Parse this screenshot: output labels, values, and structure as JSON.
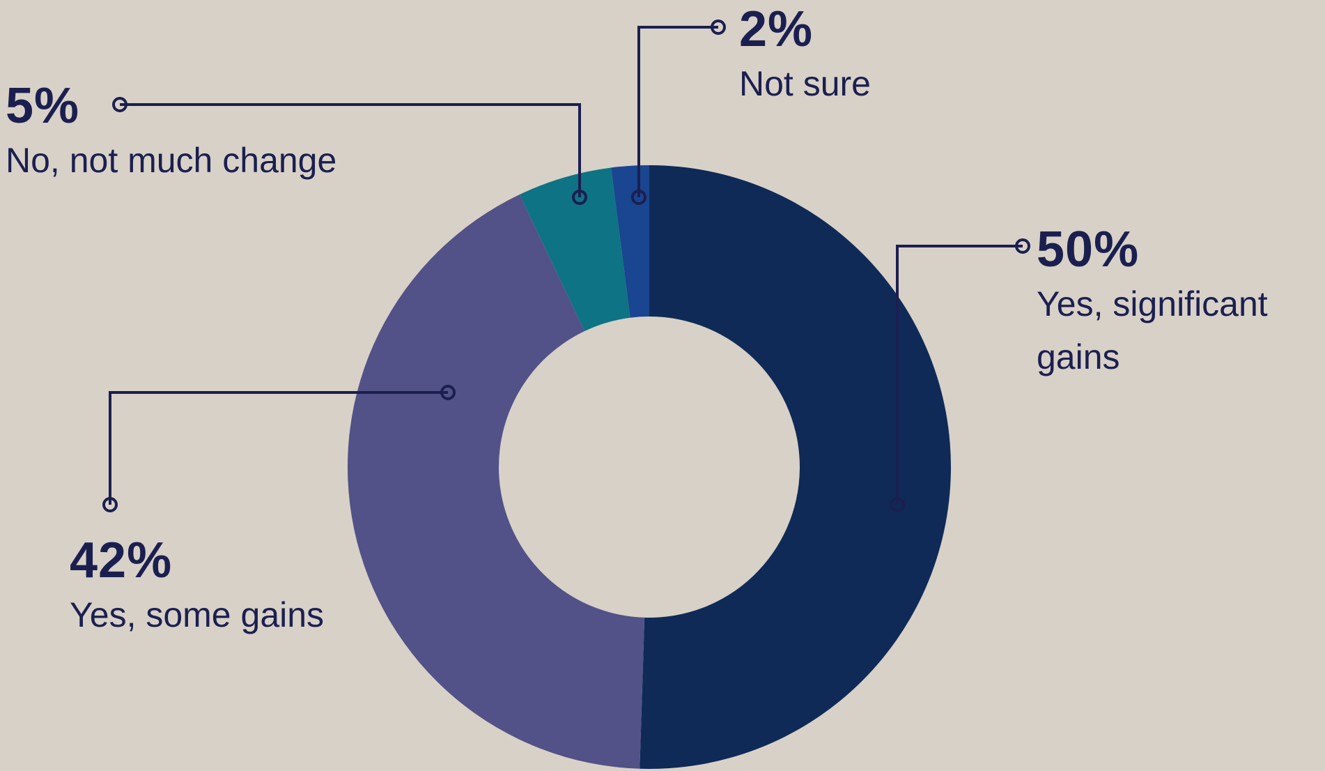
{
  "chart_data": {
    "type": "donut",
    "categories": [
      "Yes, significant gains",
      "Yes, some gains",
      "No, not much change",
      "Not sure"
    ],
    "values": [
      50,
      42,
      5,
      2
    ],
    "value_labels": [
      "50%",
      "42%",
      "5%",
      "2%"
    ],
    "colors": [
      "#0f2a57",
      "#525288",
      "#0e7385",
      "#1a4590"
    ]
  }
}
